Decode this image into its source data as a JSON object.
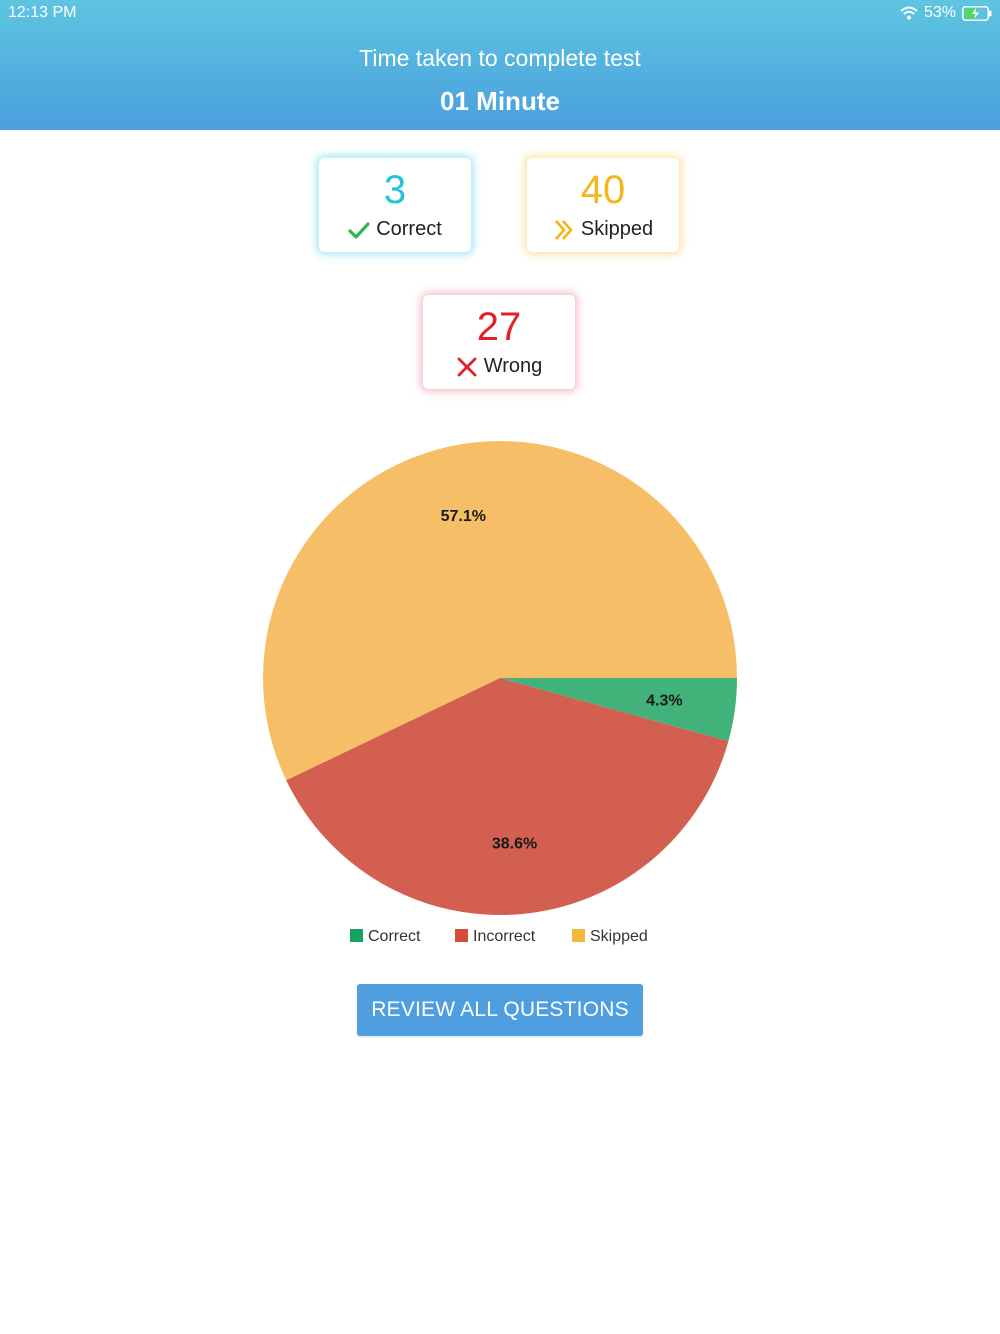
{
  "status_bar": {
    "time": "12:13 PM",
    "battery_percent": "53%",
    "wifi_icon": "wifi-icon",
    "battery_icon": "battery-charging-icon"
  },
  "header": {
    "title": "Time taken to complete test",
    "value": "01 Minute"
  },
  "stats": {
    "correct": {
      "count": "3",
      "label": "Correct",
      "icon": "checkmark-icon",
      "color": "#22c3d8"
    },
    "skipped": {
      "count": "40",
      "label": "Skipped",
      "icon": "double-chevron-right-icon",
      "color": "#f3b71b"
    },
    "wrong": {
      "count": "27",
      "label": "Wrong",
      "icon": "cross-icon",
      "color": "#e0202b"
    }
  },
  "chart_data": {
    "type": "pie",
    "categories": [
      "Correct",
      "Incorrect",
      "Skipped"
    ],
    "values": [
      4.3,
      38.6,
      57.1
    ],
    "data_labels": [
      "4.3%",
      "38.6%",
      "57.1%"
    ],
    "colors": [
      "#42b27b",
      "#d35f51",
      "#f6bf67"
    ],
    "legend_colors": [
      "#16a35e",
      "#d54b3c",
      "#f4b93c"
    ],
    "legend": "bottom",
    "title": ""
  },
  "review_button": {
    "label": "REVIEW ALL QUESTIONS"
  }
}
